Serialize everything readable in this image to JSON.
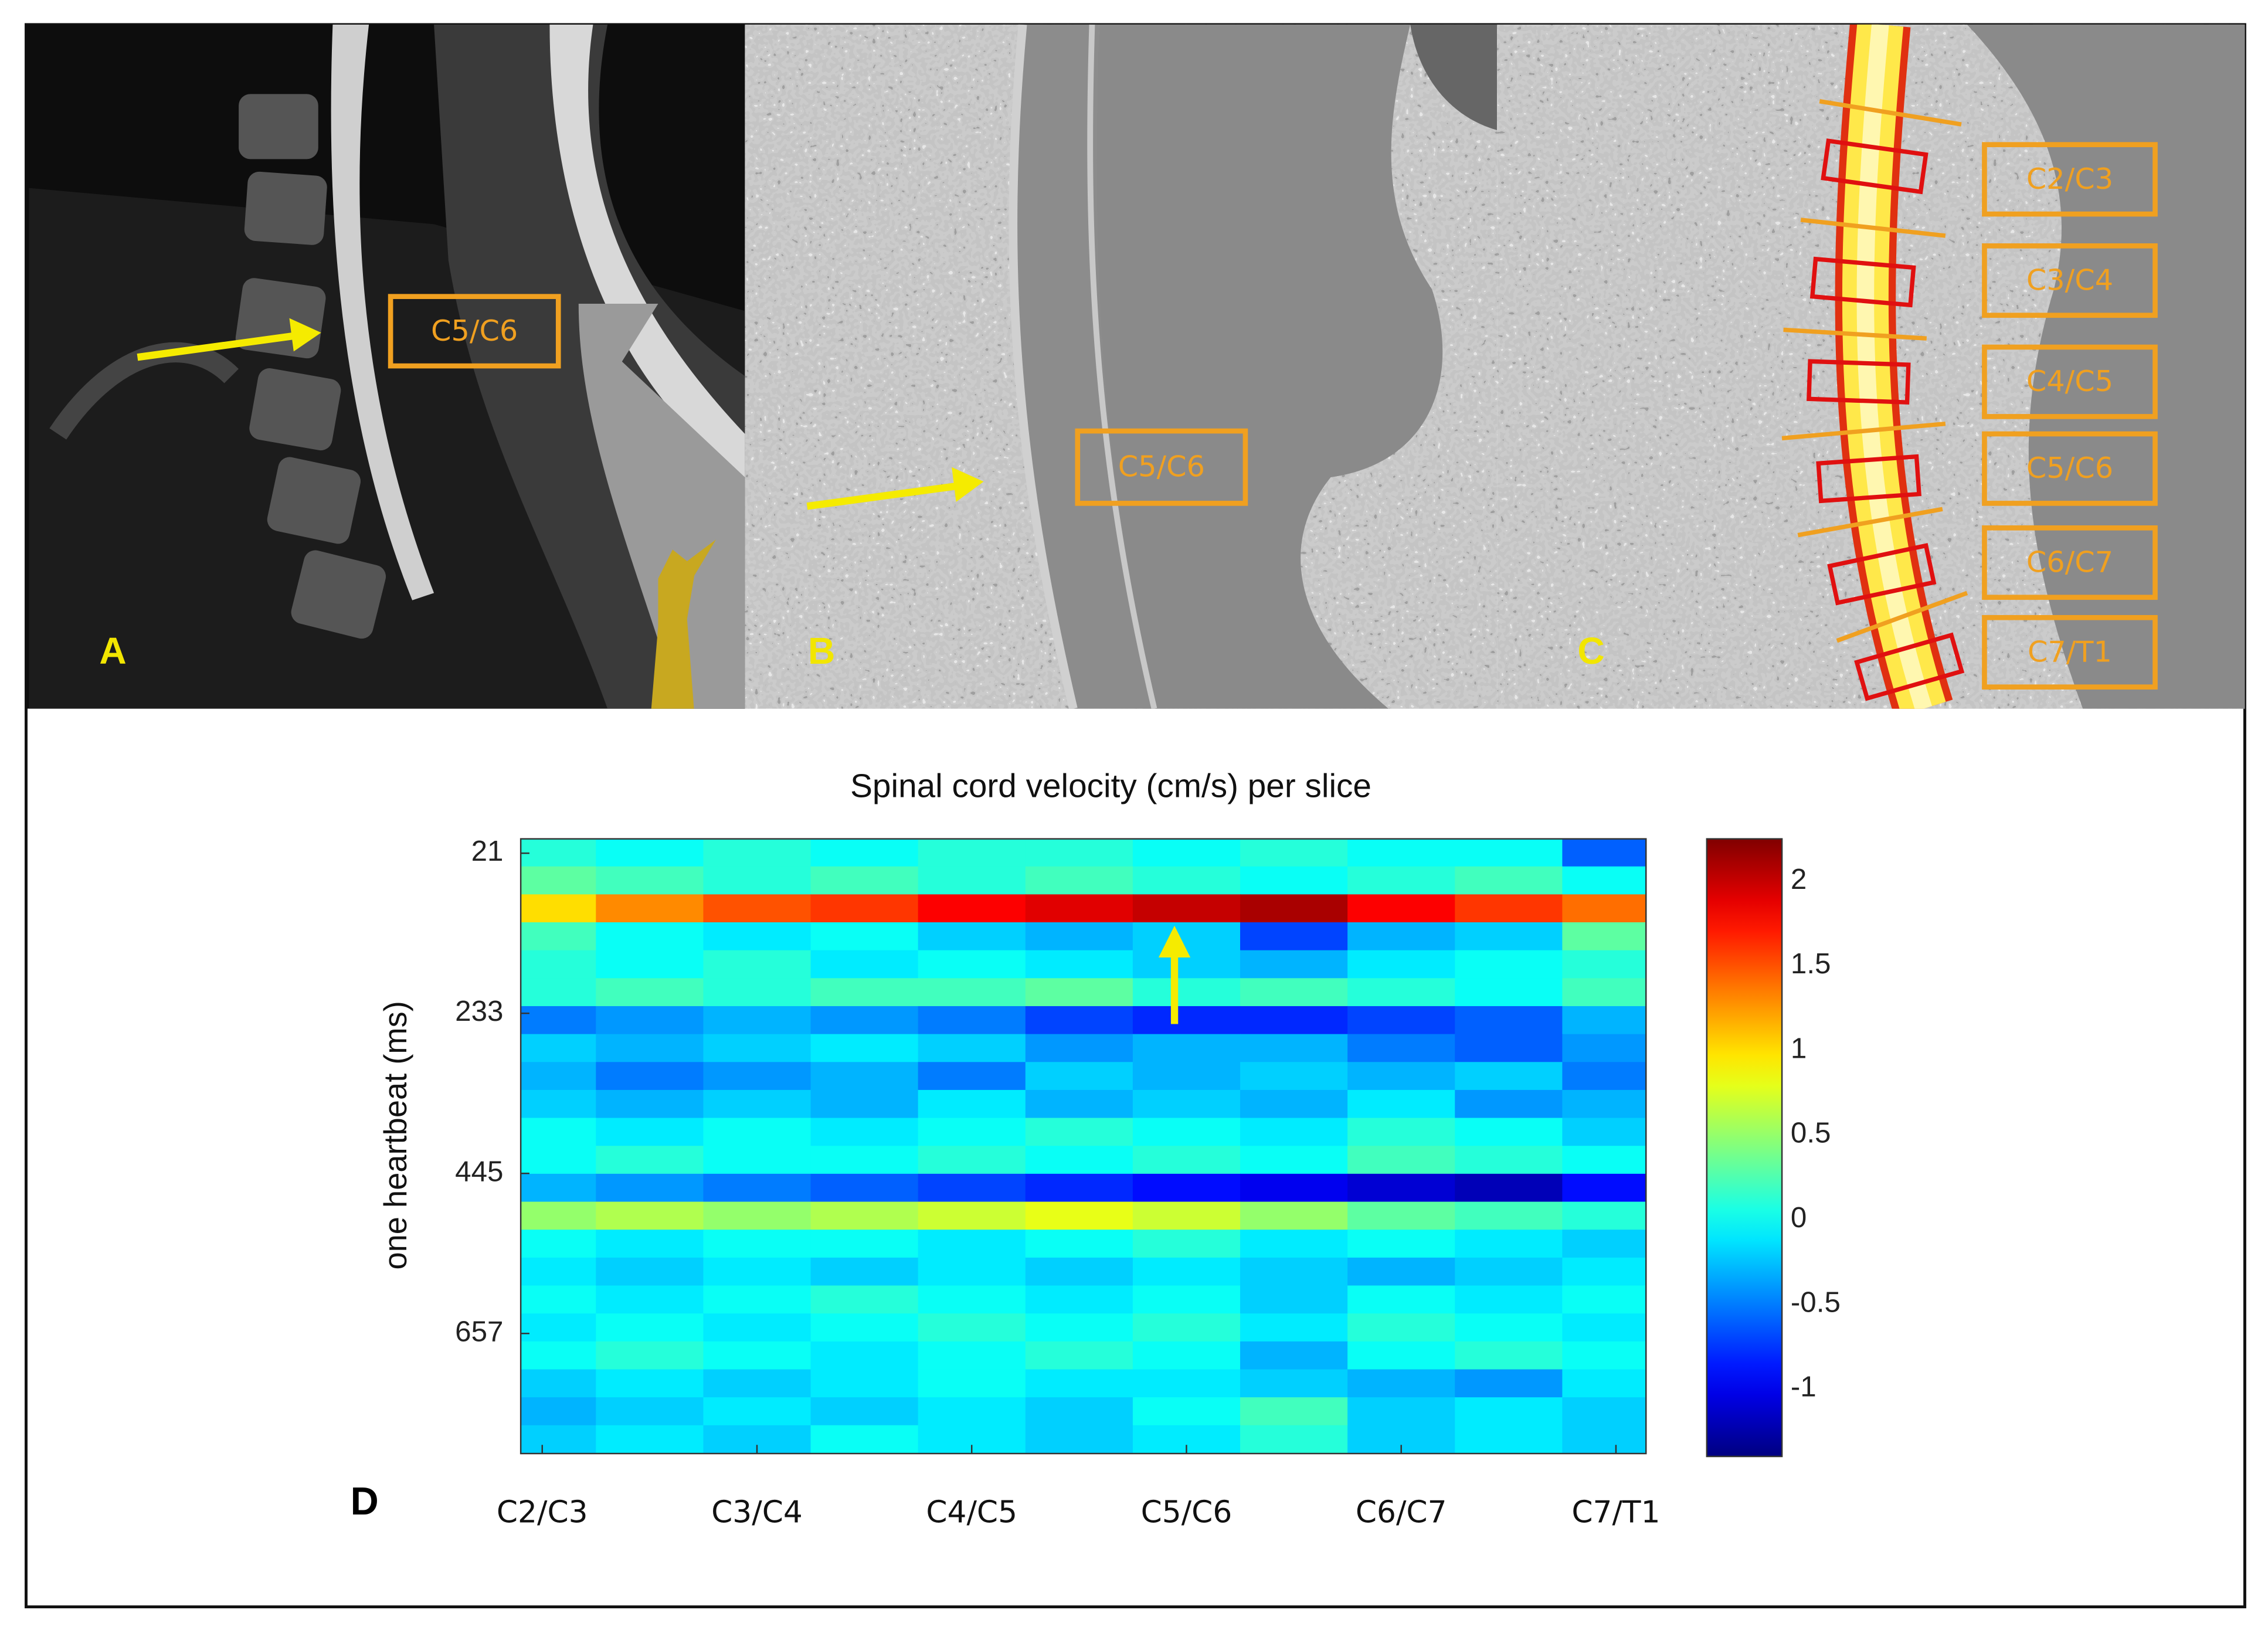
{
  "panels": {
    "A": {
      "label": "A",
      "box": "C5/C6"
    },
    "B": {
      "label": "B",
      "box": "C5/C6"
    },
    "C": {
      "label": "C",
      "boxes": [
        "C2/C3",
        "C3/C4",
        "C4/C5",
        "C5/C6",
        "C6/C7",
        "C7/T1"
      ]
    },
    "D": {
      "label": "D"
    }
  },
  "chart_data": {
    "type": "heatmap",
    "title": "Spinal cord velocity (cm/s) per slice",
    "y_label": "one heartbeat (ms)",
    "x": [
      0,
      0.5,
      1,
      1.5,
      2,
      2.5,
      3,
      3.5,
      4,
      4.5,
      5
    ],
    "y": [
      20,
      57,
      94,
      131,
      168,
      205,
      242,
      279,
      316,
      353,
      390,
      427,
      464,
      501,
      538,
      575,
      612,
      649,
      686,
      723,
      760,
      797
    ],
    "values": [
      [
        0.1,
        0.0,
        0.1,
        0.0,
        0.1,
        0.1,
        0.0,
        0.1,
        0.0,
        0.0,
        -0.6
      ],
      [
        0.3,
        0.2,
        0.1,
        0.2,
        0.1,
        0.2,
        0.1,
        0.0,
        0.1,
        0.2,
        0.0
      ],
      [
        1.0,
        1.3,
        1.5,
        1.6,
        1.8,
        1.9,
        2.0,
        2.1,
        1.8,
        1.6,
        1.4
      ],
      [
        0.2,
        0.0,
        -0.1,
        0.0,
        -0.2,
        -0.3,
        -0.2,
        -0.7,
        -0.3,
        -0.2,
        0.3
      ],
      [
        0.1,
        0.0,
        0.1,
        -0.1,
        0.0,
        -0.1,
        -0.2,
        -0.3,
        -0.1,
        0.0,
        0.1
      ],
      [
        0.1,
        0.2,
        0.1,
        0.2,
        0.2,
        0.3,
        0.1,
        0.2,
        0.1,
        0.0,
        0.2
      ],
      [
        -0.5,
        -0.4,
        -0.3,
        -0.4,
        -0.5,
        -0.7,
        -0.8,
        -0.8,
        -0.7,
        -0.6,
        -0.3
      ],
      [
        -0.2,
        -0.3,
        -0.2,
        -0.1,
        -0.2,
        -0.4,
        -0.3,
        -0.3,
        -0.5,
        -0.6,
        -0.4
      ],
      [
        -0.3,
        -0.5,
        -0.4,
        -0.3,
        -0.5,
        -0.2,
        -0.3,
        -0.2,
        -0.3,
        -0.2,
        -0.5
      ],
      [
        -0.2,
        -0.3,
        -0.2,
        -0.3,
        -0.1,
        -0.3,
        -0.2,
        -0.3,
        -0.1,
        -0.4,
        -0.3
      ],
      [
        0.0,
        -0.1,
        0.0,
        -0.1,
        0.0,
        0.1,
        0.0,
        -0.1,
        0.1,
        0.0,
        -0.2
      ],
      [
        0.0,
        0.1,
        0.0,
        0.0,
        0.1,
        0.0,
        0.1,
        0.0,
        0.2,
        0.1,
        0.0
      ],
      [
        -0.3,
        -0.4,
        -0.5,
        -0.6,
        -0.7,
        -0.8,
        -0.9,
        -1.0,
        -1.1,
        -1.2,
        -0.9
      ],
      [
        0.5,
        0.6,
        0.5,
        0.6,
        0.7,
        0.8,
        0.7,
        0.5,
        0.3,
        0.2,
        0.1
      ],
      [
        0.0,
        -0.1,
        0.0,
        0.0,
        -0.1,
        0.0,
        0.1,
        -0.1,
        0.0,
        -0.1,
        -0.2
      ],
      [
        -0.1,
        -0.2,
        -0.1,
        -0.2,
        -0.1,
        -0.2,
        -0.1,
        -0.2,
        -0.3,
        -0.2,
        -0.1
      ],
      [
        0.0,
        -0.1,
        0.0,
        0.1,
        0.0,
        -0.1,
        0.0,
        -0.2,
        0.0,
        -0.1,
        0.0
      ],
      [
        -0.1,
        0.0,
        -0.1,
        0.0,
        0.1,
        0.0,
        0.1,
        -0.1,
        0.1,
        0.0,
        -0.1
      ],
      [
        0.0,
        0.1,
        0.0,
        -0.1,
        0.0,
        0.1,
        0.0,
        -0.3,
        0.0,
        0.1,
        0.0
      ],
      [
        -0.2,
        -0.1,
        -0.2,
        -0.1,
        0.0,
        -0.1,
        -0.1,
        -0.2,
        -0.3,
        -0.4,
        -0.1
      ],
      [
        -0.3,
        -0.2,
        -0.1,
        -0.2,
        -0.1,
        -0.2,
        0.0,
        0.2,
        -0.2,
        -0.1,
        -0.2
      ],
      [
        -0.2,
        -0.1,
        -0.2,
        0.0,
        -0.1,
        -0.2,
        -0.1,
        0.1,
        -0.2,
        -0.1,
        -0.2
      ]
    ],
    "xlim": [
      -0.1,
      5.14
    ],
    "ylim": [
      2,
      816
    ],
    "y_inverted": true,
    "xticks": [
      {
        "value": 0,
        "label": "C2/C3"
      },
      {
        "value": 1,
        "label": "C3/C4"
      },
      {
        "value": 2,
        "label": "C4/C5"
      },
      {
        "value": 3,
        "label": "C5/C6"
      },
      {
        "value": 4,
        "label": "C6/C7"
      },
      {
        "value": 5,
        "label": "C7/T1"
      }
    ],
    "yticks": [
      21,
      233,
      445,
      657
    ],
    "colormap": "jet",
    "clim": [
      -1.4,
      2.25
    ],
    "colorbar_ticks": [
      2,
      1.5,
      1,
      0.5,
      0,
      -0.5,
      -1
    ]
  }
}
